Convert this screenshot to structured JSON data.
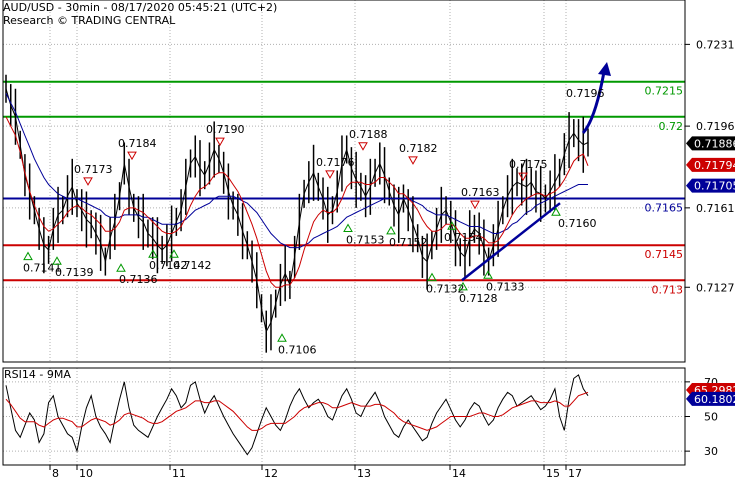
{
  "header": {
    "title": "AUD/USD - 30min - 08/17/2020 05:45:21 (UTC+2)",
    "source": "Research © TRADING CENTRAL"
  },
  "colors": {
    "price": "#000000",
    "ma_fast": "#cc0000",
    "ma_slow": "#000099",
    "resistance": "#009900",
    "support": "#cc0000",
    "pivot": "#000099",
    "arrow": "#000099",
    "last_price_bg": "#000000",
    "rsi_value_bg": "#000099",
    "rsi_ma_bg": "#cc0000"
  },
  "chart_data": [
    {
      "type": "line",
      "title": "AUD/USD - 30min",
      "x_ticks": [
        "8",
        "10",
        "11",
        "12",
        "13",
        "14",
        "15",
        "17"
      ],
      "y_ticks": [
        "0.7231",
        "0.7196",
        "0.7161",
        "0.7127"
      ],
      "ylim": [
        0.7095,
        0.725
      ],
      "grid": true,
      "levels": [
        {
          "label": "0.7215",
          "value": 0.7215,
          "role": "resistance"
        },
        {
          "label": "0.72",
          "value": 0.72,
          "role": "resistance"
        },
        {
          "label": "0.7165",
          "value": 0.7165,
          "role": "pivot"
        },
        {
          "label": "0.7145",
          "value": 0.7145,
          "role": "support"
        },
        {
          "label": "0.713",
          "value": 0.713,
          "role": "support"
        }
      ],
      "badges": {
        "last_price": "0.71886",
        "ma_fast": "0.71794",
        "ma_slow": "0.71705"
      },
      "peaks": [
        "0.7173",
        "0.7184",
        "0.7190",
        "0.7176",
        "0.7188",
        "0.7182",
        "0.7163",
        "0.7175"
      ],
      "troughs": [
        "0.7141",
        "0.7139",
        "0.7136",
        "0.7142",
        "0.7142",
        "0.7106",
        "0.7153",
        "0.7152",
        "0.7154",
        "0.7132",
        "0.7128",
        "0.7133",
        "0.7160"
      ],
      "extra_labels": [
        "0.7196"
      ],
      "price_series": [
        0.7212,
        0.7205,
        0.72,
        0.7188,
        0.7175,
        0.7168,
        0.716,
        0.7152,
        0.7145,
        0.7143,
        0.7152,
        0.7158,
        0.716,
        0.7166,
        0.717,
        0.7163,
        0.716,
        0.7156,
        0.7154,
        0.715,
        0.7146,
        0.7138,
        0.7148,
        0.7155,
        0.7166,
        0.718,
        0.717,
        0.7161,
        0.7157,
        0.7155,
        0.715,
        0.7148,
        0.7145,
        0.7143,
        0.7145,
        0.715,
        0.7155,
        0.716,
        0.717,
        0.718,
        0.7183,
        0.7178,
        0.7175,
        0.718,
        0.7186,
        0.7182,
        0.7176,
        0.7168,
        0.7162,
        0.7158,
        0.7151,
        0.7145,
        0.7138,
        0.713,
        0.7118,
        0.7108,
        0.7112,
        0.712,
        0.7128,
        0.7133,
        0.7128,
        0.714,
        0.7155,
        0.7167,
        0.7172,
        0.7176,
        0.717,
        0.7165,
        0.7158,
        0.716,
        0.7168,
        0.718,
        0.7186,
        0.7178,
        0.7173,
        0.717,
        0.7166,
        0.717,
        0.7176,
        0.718,
        0.7175,
        0.7168,
        0.7162,
        0.7158,
        0.7165,
        0.716,
        0.7154,
        0.7148,
        0.714,
        0.7138,
        0.7145,
        0.7152,
        0.7158,
        0.716,
        0.7155,
        0.7148,
        0.7142,
        0.714,
        0.7148,
        0.7152,
        0.715,
        0.7144,
        0.7138,
        0.7145,
        0.7152,
        0.716,
        0.7166,
        0.717,
        0.7172,
        0.7171,
        0.717,
        0.7172,
        0.7168,
        0.7167,
        0.7165,
        0.7168,
        0.7172,
        0.7176,
        0.7184,
        0.719,
        0.7193,
        0.719,
        0.7188,
        0.7189
      ],
      "ma_fast_series": [
        0.72,
        0.7196,
        0.7192,
        0.7185,
        0.7176,
        0.7168,
        0.7162,
        0.7157,
        0.7153,
        0.7151,
        0.7152,
        0.7154,
        0.7156,
        0.7159,
        0.7161,
        0.7162,
        0.7161,
        0.7159,
        0.7158,
        0.7156,
        0.7154,
        0.7151,
        0.7151,
        0.7152,
        0.7155,
        0.716,
        0.7161,
        0.7161,
        0.716,
        0.7159,
        0.7157,
        0.7155,
        0.7153,
        0.7151,
        0.715,
        0.715,
        0.7151,
        0.7153,
        0.7157,
        0.7162,
        0.7166,
        0.7169,
        0.717,
        0.7172,
        0.7175,
        0.7176,
        0.7176,
        0.7174,
        0.7171,
        0.7168,
        0.7164,
        0.7159,
        0.7154,
        0.7148,
        0.7141,
        0.7134,
        0.7129,
        0.7127,
        0.7127,
        0.7128,
        0.7128,
        0.7131,
        0.7136,
        0.7143,
        0.7149,
        0.7155,
        0.7158,
        0.716,
        0.7159,
        0.7159,
        0.7161,
        0.7165,
        0.717,
        0.7172,
        0.7172,
        0.7172,
        0.7171,
        0.7171,
        0.7172,
        0.7174,
        0.7174,
        0.7172,
        0.717,
        0.7167,
        0.7167,
        0.7165,
        0.7163,
        0.716,
        0.7156,
        0.7153,
        0.7151,
        0.7151,
        0.7152,
        0.7154,
        0.7154,
        0.7153,
        0.715,
        0.7148,
        0.7148,
        0.7149,
        0.7149,
        0.7148,
        0.7146,
        0.7146,
        0.7147,
        0.715,
        0.7154,
        0.7158,
        0.7161,
        0.7163,
        0.7165,
        0.7166,
        0.7167,
        0.7167,
        0.7166,
        0.7167,
        0.7168,
        0.717,
        0.7173,
        0.7177,
        0.7181,
        0.7183,
        0.7184,
        0.7179
      ],
      "ma_slow_series": [
        0.721,
        0.7206,
        0.7202,
        0.7197,
        0.7192,
        0.7187,
        0.7182,
        0.7178,
        0.7174,
        0.7171,
        0.7169,
        0.7167,
        0.7166,
        0.7165,
        0.7165,
        0.7165,
        0.7164,
        0.7163,
        0.7162,
        0.7161,
        0.716,
        0.7158,
        0.7157,
        0.7157,
        0.7157,
        0.7158,
        0.7158,
        0.7158,
        0.7158,
        0.7157,
        0.7157,
        0.7156,
        0.7155,
        0.7154,
        0.7154,
        0.7154,
        0.7154,
        0.7155,
        0.7156,
        0.7158,
        0.716,
        0.7161,
        0.7162,
        0.7163,
        0.7165,
        0.7166,
        0.7166,
        0.7166,
        0.7166,
        0.7165,
        0.7164,
        0.7163,
        0.7161,
        0.7159,
        0.7156,
        0.7153,
        0.715,
        0.7148,
        0.7146,
        0.7145,
        0.7144,
        0.7144,
        0.7144,
        0.7145,
        0.7146,
        0.7148,
        0.7149,
        0.715,
        0.7151,
        0.7152,
        0.7153,
        0.7155,
        0.7157,
        0.7158,
        0.7159,
        0.716,
        0.7161,
        0.7162,
        0.7163,
        0.7164,
        0.7165,
        0.7165,
        0.7165,
        0.7165,
        0.7165,
        0.7165,
        0.7164,
        0.7163,
        0.7162,
        0.716,
        0.7159,
        0.7158,
        0.7158,
        0.7158,
        0.7157,
        0.7156,
        0.7155,
        0.7154,
        0.7153,
        0.7153,
        0.7153,
        0.7152,
        0.7151,
        0.715,
        0.715,
        0.7151,
        0.7152,
        0.7154,
        0.7155,
        0.7157,
        0.7159,
        0.716,
        0.7162,
        0.7163,
        0.7164,
        0.7165,
        0.7166,
        0.7167,
        0.7168,
        0.7169,
        0.717,
        0.7171,
        0.7171,
        0.7171
      ]
    },
    {
      "type": "line",
      "title": "RSI14 - 9MA",
      "y_ticks": [
        "70",
        "50",
        "30"
      ],
      "ylim": [
        22,
        78
      ],
      "badges": {
        "rsi": "60.1802",
        "ma": "65.2982"
      },
      "rsi_series": [
        68,
        55,
        42,
        38,
        45,
        52,
        48,
        35,
        40,
        58,
        62,
        50,
        45,
        40,
        38,
        30,
        44,
        55,
        62,
        50,
        44,
        40,
        35,
        48,
        60,
        70,
        55,
        45,
        42,
        40,
        38,
        44,
        50,
        55,
        60,
        66,
        62,
        55,
        58,
        68,
        70,
        60,
        52,
        58,
        62,
        56,
        50,
        45,
        40,
        36,
        32,
        28,
        32,
        40,
        48,
        55,
        50,
        45,
        42,
        48,
        56,
        62,
        66,
        60,
        55,
        58,
        60,
        56,
        50,
        48,
        55,
        62,
        66,
        60,
        52,
        50,
        56,
        60,
        64,
        58,
        50,
        45,
        40,
        38,
        44,
        48,
        44,
        40,
        36,
        38,
        46,
        52,
        56,
        60,
        54,
        48,
        44,
        48,
        54,
        58,
        56,
        50,
        45,
        48,
        55,
        60,
        64,
        62,
        56,
        58,
        60,
        62,
        58,
        54,
        56,
        60,
        66,
        50,
        42,
        60,
        72,
        74,
        66,
        62
      ],
      "rsi_ma_series": [
        60,
        57,
        53,
        49,
        47,
        47,
        47,
        45,
        44,
        46,
        48,
        49,
        49,
        48,
        47,
        44,
        44,
        46,
        48,
        49,
        48,
        47,
        45,
        46,
        48,
        51,
        52,
        51,
        50,
        49,
        47,
        46,
        46,
        47,
        49,
        51,
        53,
        54,
        55,
        57,
        59,
        59,
        58,
        58,
        59,
        59,
        57,
        55,
        53,
        50,
        47,
        44,
        42,
        42,
        43,
        45,
        46,
        46,
        46,
        46,
        48,
        50,
        53,
        55,
        56,
        57,
        58,
        58,
        57,
        55,
        55,
        56,
        57,
        58,
        57,
        56,
        56,
        56,
        57,
        57,
        56,
        54,
        52,
        49,
        47,
        46,
        45,
        44,
        43,
        42,
        43,
        44,
        46,
        48,
        50,
        50,
        50,
        50,
        50,
        51,
        52,
        52,
        51,
        50,
        50,
        51,
        53,
        55,
        56,
        57,
        58,
        59,
        59,
        58,
        58,
        58,
        59,
        58,
        56,
        56,
        59,
        62,
        63,
        64
      ]
    }
  ]
}
